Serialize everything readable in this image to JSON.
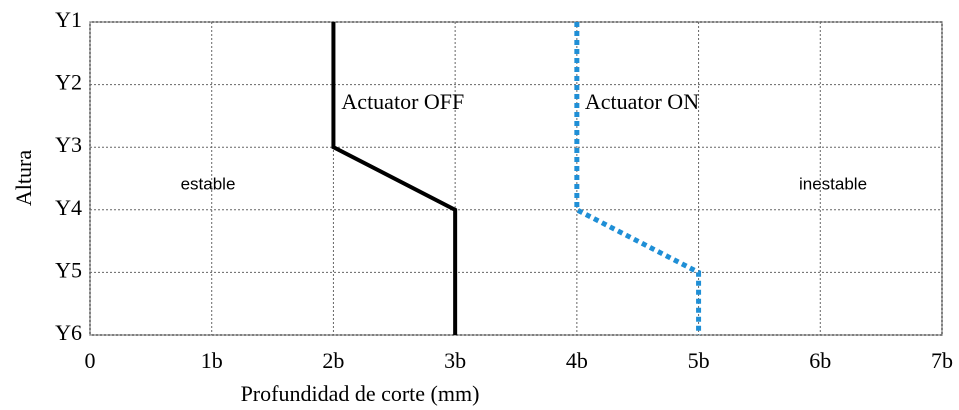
{
  "chart_data": {
    "type": "line",
    "xlabel": "Profundidad de corte (mm)",
    "ylabel": "Altura",
    "categories": [
      "Y1",
      "Y2",
      "Y3",
      "Y4",
      "Y5",
      "Y6"
    ],
    "series": [
      {
        "name": "Actuator OFF",
        "color": "#000000",
        "dash": "solid",
        "values": [
          2,
          2,
          2,
          3,
          3,
          3
        ]
      },
      {
        "name": "Actuator ON",
        "color": "#1f8fd6",
        "dash": "dotted",
        "values": [
          4,
          4,
          4,
          4,
          5,
          5
        ]
      }
    ],
    "xlim": [
      0,
      7
    ],
    "xticks": [
      0,
      {
        "value": 1,
        "label": "1b"
      },
      {
        "value": 2,
        "label": "2b"
      },
      {
        "value": 3,
        "label": "3b"
      },
      {
        "value": 4,
        "label": "4b"
      },
      {
        "value": 5,
        "label": "5b"
      },
      {
        "value": 6,
        "label": "6b"
      },
      {
        "value": 7,
        "label": "7b"
      }
    ],
    "annotations": [
      "estable",
      "inestable"
    ],
    "grid": true
  }
}
